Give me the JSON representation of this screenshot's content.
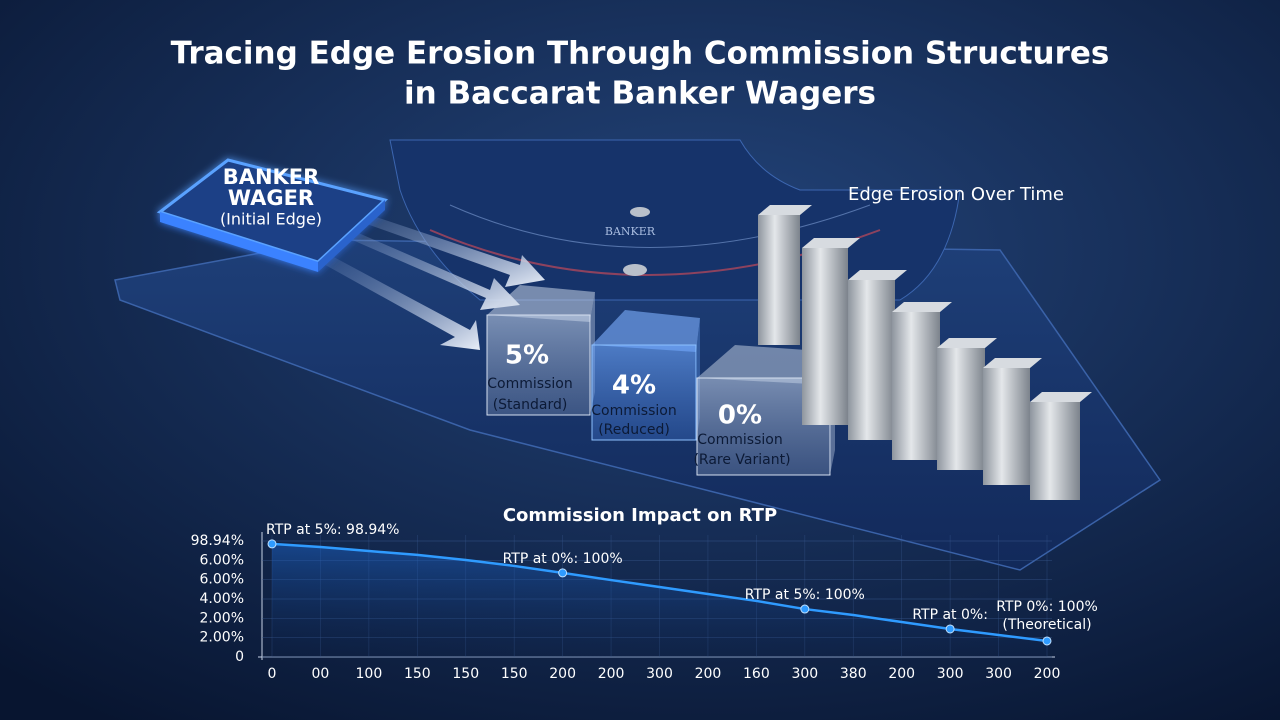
{
  "title": [
    "Tracing Edge Erosion Through Commission Structures",
    "in Baccarat Banker Wagers"
  ],
  "wager": {
    "label": [
      "BANKER",
      "WAGER"
    ],
    "note": "(Initial Edge)"
  },
  "table_label": "BANKER",
  "boxes": [
    {
      "rate": "5%",
      "label": "Commission",
      "note": "(Standard)"
    },
    {
      "rate": "4%",
      "label": "Commission",
      "note": "(Reduced)"
    },
    {
      "rate": "0%",
      "label": "Commission",
      "note": "(Rare Variant)"
    }
  ],
  "bars_title": "Edge Erosion Over Time",
  "chart_data": {
    "type": "line",
    "title": "Commission Impact on RTP",
    "categories": [
      "0",
      "00",
      "100",
      "150",
      "150",
      "150",
      "200",
      "200",
      "300",
      "200",
      "160",
      "300",
      "380",
      "200",
      "300",
      "300",
      "200"
    ],
    "series": [
      {
        "name": "RTP",
        "color": "#2f9bff",
        "values": [
          5.85,
          5.69,
          5.48,
          5.28,
          5.02,
          4.71,
          4.35,
          3.98,
          3.62,
          3.26,
          2.9,
          2.48,
          2.17,
          1.81,
          1.45,
          1.14,
          0.83
        ]
      }
    ],
    "ylim": [
      0,
      6
    ],
    "yticks": [
      {
        "value": 0,
        "label": "0"
      },
      {
        "value": 1,
        "label": "2.00%"
      },
      {
        "value": 2,
        "label": "2.00%"
      },
      {
        "value": 3,
        "label": "4.00%"
      },
      {
        "value": 4,
        "label": "6.00%"
      },
      {
        "value": 5,
        "label": "6.00%"
      },
      {
        "value": 6,
        "label": "98.94%"
      }
    ],
    "grid": true,
    "annotations": [
      {
        "index": 0,
        "text": [
          "RTP at 5%: 98.94%"
        ]
      },
      {
        "index": 6,
        "text": [
          "RTP at 0%: 100%"
        ]
      },
      {
        "index": 11,
        "text": [
          "RTP at 5%: 100%"
        ]
      },
      {
        "index": 14,
        "text": [
          "RTP at 0%:"
        ]
      },
      {
        "index": 16,
        "text": [
          "RTP 0%: 100%",
          "(Theoretical)"
        ]
      }
    ]
  }
}
